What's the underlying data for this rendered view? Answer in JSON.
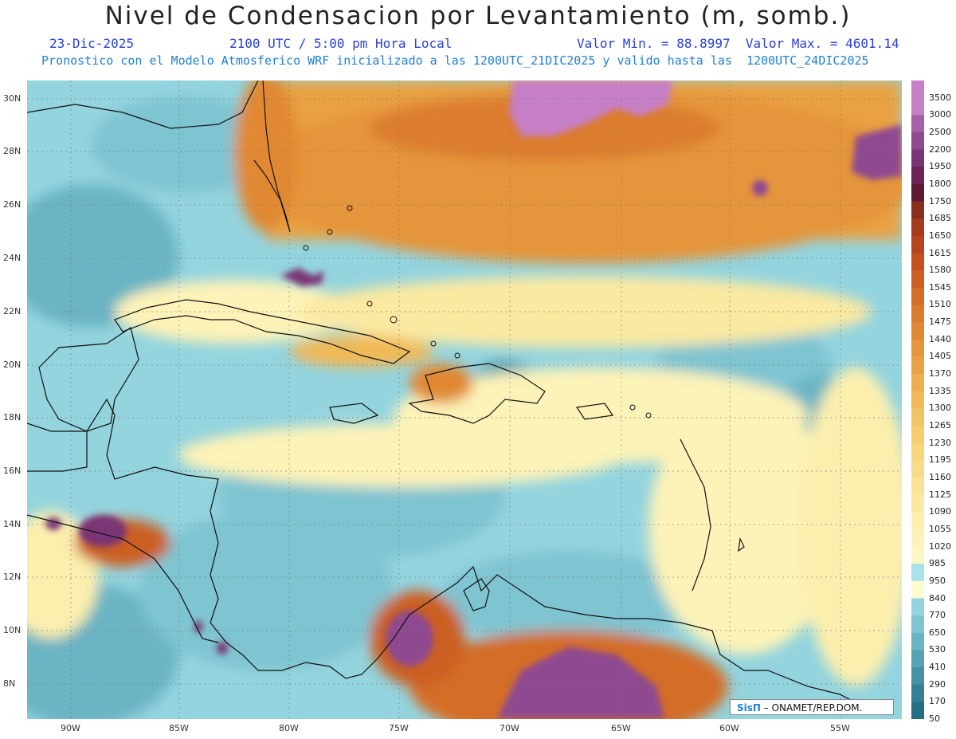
{
  "header": {
    "title": "Nivel de Condensacion por Levantamiento (m, somb.)",
    "date": "23-Dic-2025",
    "time": "2100 UTC / 5:00 pm Hora Local",
    "min_max": "Valor Min. = 88.8997  Valor Max. = 4601.14",
    "model_line": "Pronostico con el Modelo Atmosferico WRF inicializado a las 1200UTC_21DIC2025 y valido hasta las  1200UTC_24DIC2025"
  },
  "axes": {
    "lat_labels": [
      "30N",
      "28N",
      "26N",
      "24N",
      "22N",
      "20N",
      "18N",
      "16N",
      "14N",
      "12N",
      "10N",
      "8N"
    ],
    "lon_labels": [
      "90W",
      "85W",
      "80W",
      "75W",
      "70W",
      "65W",
      "60W",
      "55W"
    ]
  },
  "legend": {
    "levels": [
      "3500",
      "3000",
      "2500",
      "2200",
      "1950",
      "1800",
      "1750",
      "1685",
      "1650",
      "1615",
      "1580",
      "1545",
      "1510",
      "1475",
      "1440",
      "1405",
      "1370",
      "1335",
      "1300",
      "1265",
      "1230",
      "1195",
      "1160",
      "1125",
      "1090",
      "1055",
      "1020",
      "985",
      "950",
      "840",
      "770",
      "650",
      "530",
      "410",
      "290",
      "170",
      "50"
    ],
    "colors": [
      "#c77fc6",
      "#a85ea8",
      "#8f4a90",
      "#7a3475",
      "#6b2256",
      "#5e1a33",
      "#8a2e1c",
      "#a53a1c",
      "#b4451d",
      "#c2511f",
      "#cc5f22",
      "#d46d27",
      "#db7b2d",
      "#e18833",
      "#e5953b",
      "#e9a243",
      "#edae4d",
      "#f0b957",
      "#f3c462",
      "#f5cd6e",
      "#f7d57b",
      "#f9dc88",
      "#fae395",
      "#fbe9a2",
      "#fcefae",
      "#fdf3b8",
      "#fdf7c2",
      "#a8e2ea",
      "#93d4df",
      "#7fc4d1",
      "#6bb4c3",
      "#57a3b4",
      "#4592a5",
      "#338196",
      "#246f86",
      "#186076"
    ],
    "neutral_color": "#fffbd0"
  },
  "credit": {
    "brand": "SisΠ",
    "text": " – ONAMET/REP.DOM."
  }
}
